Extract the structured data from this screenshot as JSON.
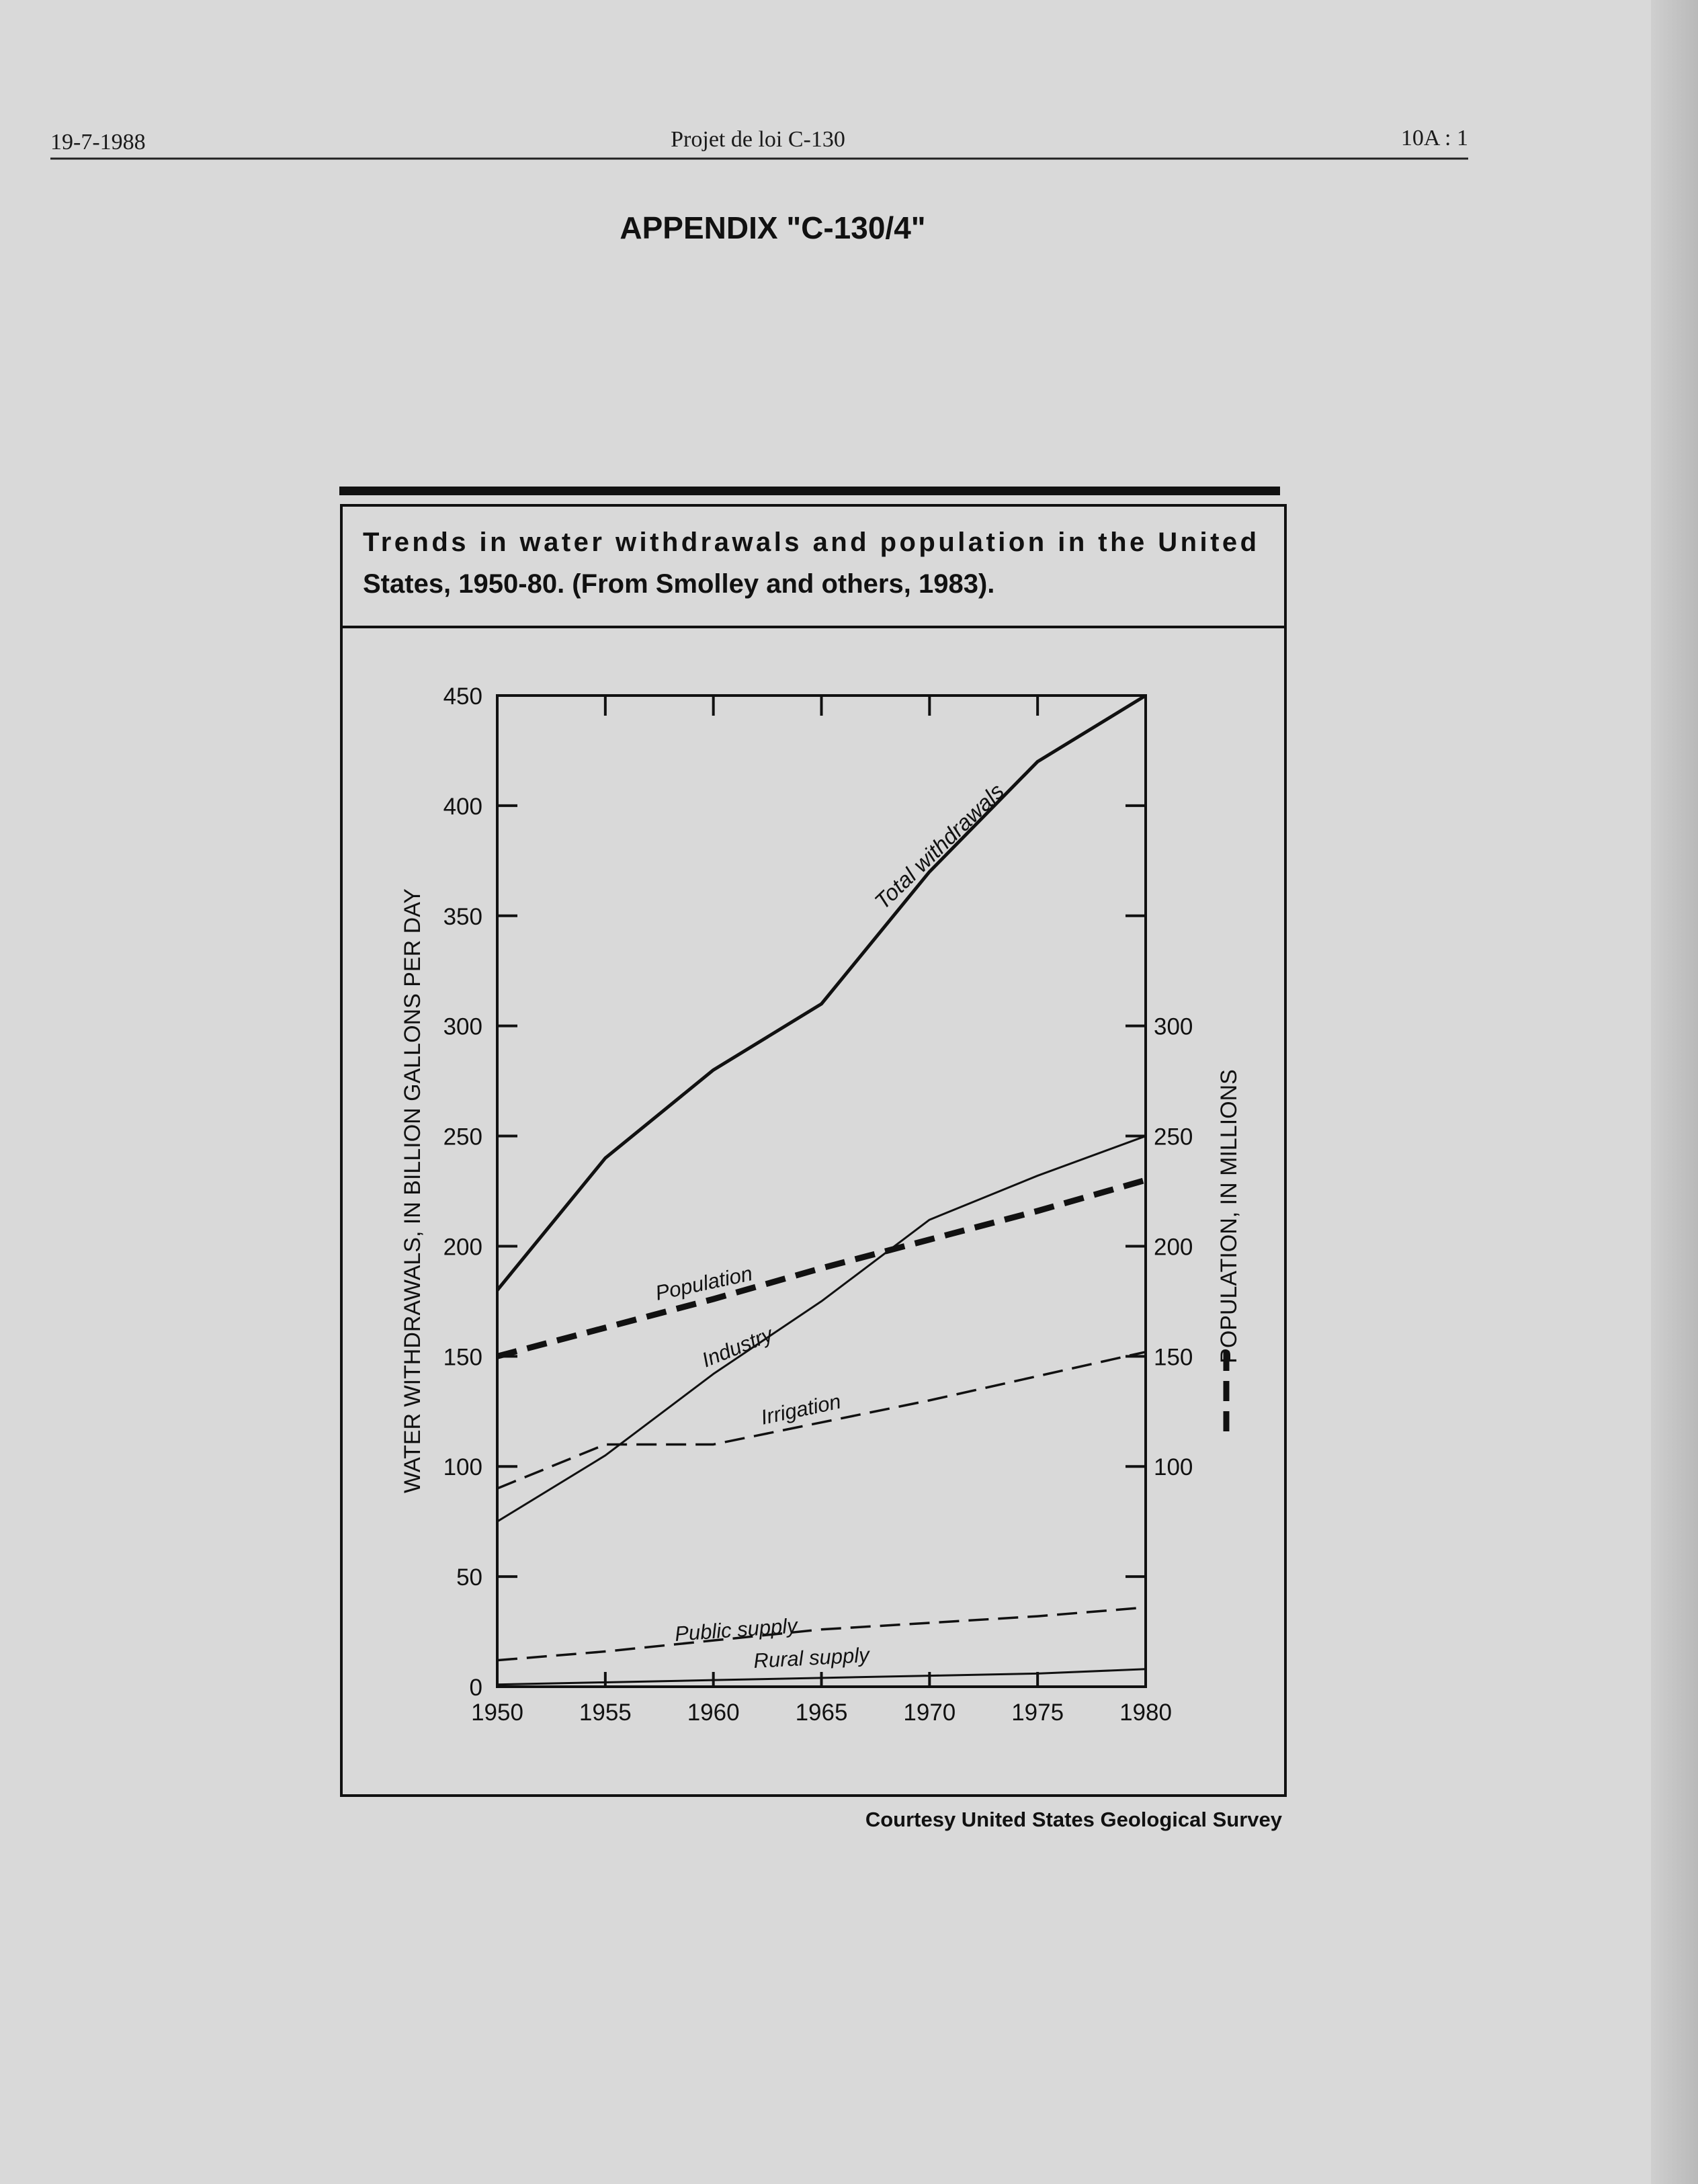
{
  "header": {
    "date": "19-7-1988",
    "bill": "Projet de loi C-130",
    "page": "10A : 1"
  },
  "appendix_title": "APPENDIX \"C-130/4\"",
  "figure": {
    "caption_line1": "Trends in water withdrawals and population in the United",
    "caption_line2": "States, 1950-80. (From Smolley and others, 1983).",
    "credit": "Courtesy United States Geological Survey"
  },
  "chart_data": {
    "type": "line",
    "title": "Trends in water withdrawals and population in the United States, 1950-80",
    "xlabel": "",
    "ylabel": "WATER WITHDRAWALS, IN BILLION GALLONS PER DAY",
    "y2label": "POPULATION, IN MILLIONS",
    "x": [
      1950,
      1955,
      1960,
      1965,
      1970,
      1975,
      1980
    ],
    "xlim": [
      1950,
      1980
    ],
    "ylim": [
      0,
      450
    ],
    "y2lim": [
      0,
      450
    ],
    "xticks": [
      "1950",
      "1955",
      "1960",
      "1965",
      "1970",
      "1975",
      "1980"
    ],
    "yticks": [
      "0",
      "50",
      "100",
      "150",
      "200",
      "250",
      "300",
      "350",
      "400",
      "450"
    ],
    "y2ticks": [
      "100",
      "150",
      "200",
      "250",
      "300"
    ],
    "series": [
      {
        "name": "Total withdrawals",
        "style": "solid-thick",
        "values": [
          180,
          240,
          280,
          310,
          370,
          420,
          450
        ]
      },
      {
        "name": "Industry",
        "style": "solid-thin",
        "values": [
          75,
          105,
          142,
          175,
          212,
          232,
          250
        ]
      },
      {
        "name": "Irrigation",
        "style": "dashed",
        "values": [
          90,
          110,
          110,
          120,
          130,
          141,
          152
        ]
      },
      {
        "name": "Public supply",
        "style": "dashed",
        "values": [
          12,
          16,
          21,
          26,
          29,
          32,
          36
        ]
      },
      {
        "name": "Rural supply",
        "style": "solid-thin",
        "values": [
          1,
          2,
          3,
          4,
          5,
          6,
          8
        ]
      },
      {
        "name": "Population",
        "style": "dashed-thick",
        "axis": "right",
        "values": [
          150,
          163,
          176,
          190,
          203,
          216,
          230
        ]
      }
    ]
  }
}
